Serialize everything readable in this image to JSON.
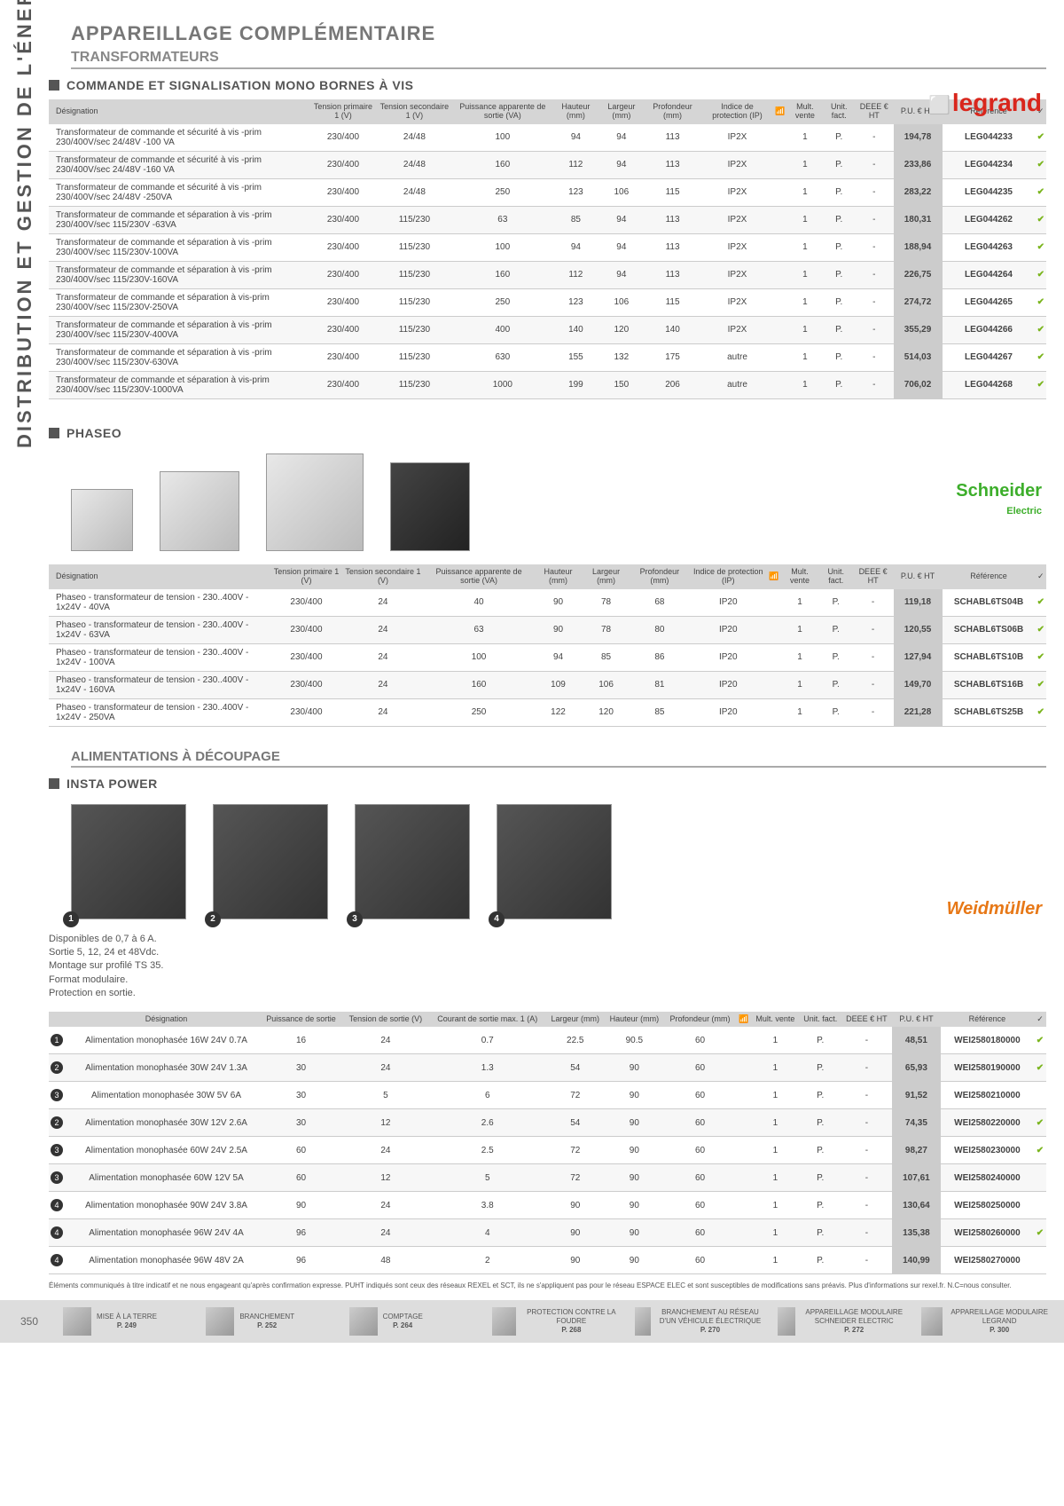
{
  "vtab": "DISTRIBUTION ET GESTION DE L'ÉNERGIE",
  "h1": "APPAREILLAGE COMPLÉMENTAIRE",
  "h2": "TRANSFORMATEURS",
  "sec1": "COMMANDE ET SIGNALISATION MONO BORNES À VIS",
  "sec2": "PHASEO",
  "h3": "ALIMENTATIONS À DÉCOUPAGE",
  "sec3": "INSTA POWER",
  "notes": "Disponibles de 0,7 à 6 A.\nSortie 5, 12, 24 et 48Vdc.\nMontage sur profilé TS 35.\nFormat modulaire.\nProtection en sortie.",
  "brand1": "legrand",
  "brand2": "Schneider",
  "brand2sub": "Electric",
  "brand3": "Weidmüller",
  "t1": {
    "head": [
      "Désignation",
      "Tension primaire 1 (V)",
      "Tension secondaire 1 (V)",
      "Puissance apparente de sortie (VA)",
      "Hauteur (mm)",
      "Largeur (mm)",
      "Profondeur (mm)",
      "Indice de protection (IP)",
      "📶",
      "Mult. vente",
      "Unit. fact.",
      "DEEE € HT",
      "P.U. € HT",
      "Référence",
      "✓"
    ],
    "rows": [
      [
        "Transformateur de commande et sécurité à vis -prim 230/400V/sec 24/48V -100 VA",
        "230/400",
        "24/48",
        "100",
        "94",
        "94",
        "113",
        "IP2X",
        "",
        "1",
        "P.",
        "-",
        "194,78",
        "LEG044233",
        "✔"
      ],
      [
        "Transformateur de commande et sécurité à vis -prim 230/400V/sec 24/48V -160 VA",
        "230/400",
        "24/48",
        "160",
        "112",
        "94",
        "113",
        "IP2X",
        "",
        "1",
        "P.",
        "-",
        "233,86",
        "LEG044234",
        "✔"
      ],
      [
        "Transformateur de commande et sécurité à vis -prim 230/400V/sec 24/48V -250VA",
        "230/400",
        "24/48",
        "250",
        "123",
        "106",
        "115",
        "IP2X",
        "",
        "1",
        "P.",
        "-",
        "283,22",
        "LEG044235",
        "✔"
      ],
      [
        "Transformateur de commande et séparation à vis -prim 230/400V/sec 115/230V -63VA",
        "230/400",
        "115/230",
        "63",
        "85",
        "94",
        "113",
        "IP2X",
        "",
        "1",
        "P.",
        "-",
        "180,31",
        "LEG044262",
        "✔"
      ],
      [
        "Transformateur de commande et séparation à vis -prim 230/400V/sec 115/230V-100VA",
        "230/400",
        "115/230",
        "100",
        "94",
        "94",
        "113",
        "IP2X",
        "",
        "1",
        "P.",
        "-",
        "188,94",
        "LEG044263",
        "✔"
      ],
      [
        "Transformateur de commande et séparation à vis -prim 230/400V/sec 115/230V-160VA",
        "230/400",
        "115/230",
        "160",
        "112",
        "94",
        "113",
        "IP2X",
        "",
        "1",
        "P.",
        "-",
        "226,75",
        "LEG044264",
        "✔"
      ],
      [
        "Transformateur de commande et séparation à vis-prim 230/400V/sec 115/230V-250VA",
        "230/400",
        "115/230",
        "250",
        "123",
        "106",
        "115",
        "IP2X",
        "",
        "1",
        "P.",
        "-",
        "274,72",
        "LEG044265",
        "✔"
      ],
      [
        "Transformateur de commande et séparation à vis -prim 230/400V/sec 115/230V-400VA",
        "230/400",
        "115/230",
        "400",
        "140",
        "120",
        "140",
        "IP2X",
        "",
        "1",
        "P.",
        "-",
        "355,29",
        "LEG044266",
        "✔"
      ],
      [
        "Transformateur de commande et séparation à vis -prim 230/400V/sec 115/230V-630VA",
        "230/400",
        "115/230",
        "630",
        "155",
        "132",
        "175",
        "autre",
        "",
        "1",
        "P.",
        "-",
        "514,03",
        "LEG044267",
        "✔"
      ],
      [
        "Transformateur de commande et séparation à vis-prim 230/400V/sec 115/230V-1000VA",
        "230/400",
        "115/230",
        "1000",
        "199",
        "150",
        "206",
        "autre",
        "",
        "1",
        "P.",
        "-",
        "706,02",
        "LEG044268",
        "✔"
      ]
    ]
  },
  "t2": {
    "head": [
      "Désignation",
      "Tension primaire 1 (V)",
      "Tension secondaire 1 (V)",
      "Puissance apparente de sortie (VA)",
      "Hauteur (mm)",
      "Largeur (mm)",
      "Profondeur (mm)",
      "Indice de protection (IP)",
      "📶",
      "Mult. vente",
      "Unit. fact.",
      "DEEE € HT",
      "P.U. € HT",
      "Référence",
      "✓"
    ],
    "rows": [
      [
        "Phaseo - transformateur de tension - 230..400V - 1x24V - 40VA",
        "230/400",
        "24",
        "40",
        "90",
        "78",
        "68",
        "IP20",
        "",
        "1",
        "P.",
        "-",
        "119,18",
        "SCHABL6TS04B",
        "✔"
      ],
      [
        "Phaseo - transformateur de tension - 230..400V - 1x24V - 63VA",
        "230/400",
        "24",
        "63",
        "90",
        "78",
        "80",
        "IP20",
        "",
        "1",
        "P.",
        "-",
        "120,55",
        "SCHABL6TS06B",
        "✔"
      ],
      [
        "Phaseo - transformateur de tension - 230..400V - 1x24V - 100VA",
        "230/400",
        "24",
        "100",
        "94",
        "85",
        "86",
        "IP20",
        "",
        "1",
        "P.",
        "-",
        "127,94",
        "SCHABL6TS10B",
        "✔"
      ],
      [
        "Phaseo - transformateur de tension - 230..400V - 1x24V - 160VA",
        "230/400",
        "24",
        "160",
        "109",
        "106",
        "81",
        "IP20",
        "",
        "1",
        "P.",
        "-",
        "149,70",
        "SCHABL6TS16B",
        "✔"
      ],
      [
        "Phaseo - transformateur de tension - 230..400V - 1x24V - 250VA",
        "230/400",
        "24",
        "250",
        "122",
        "120",
        "85",
        "IP20",
        "",
        "1",
        "P.",
        "-",
        "221,28",
        "SCHABL6TS25B",
        "✔"
      ]
    ]
  },
  "t3": {
    "head": [
      "",
      "Désignation",
      "Puissance de sortie",
      "Tension de sortie (V)",
      "Courant de sortie max. 1 (A)",
      "Largeur (mm)",
      "Hauteur (mm)",
      "Profondeur (mm)",
      "📶",
      "Mult. vente",
      "Unit. fact.",
      "DEEE € HT",
      "P.U. € HT",
      "Référence",
      "✓"
    ],
    "rows": [
      [
        "1",
        "Alimentation monophasée  16W 24V 0.7A",
        "16",
        "24",
        "0.7",
        "22.5",
        "90.5",
        "60",
        "",
        "1",
        "P.",
        "-",
        "48,51",
        "WEI2580180000",
        "✔"
      ],
      [
        "2",
        "Alimentation monophasée  30W 24V 1.3A",
        "30",
        "24",
        "1.3",
        "54",
        "90",
        "60",
        "",
        "1",
        "P.",
        "-",
        "65,93",
        "WEI2580190000",
        "✔"
      ],
      [
        "3",
        "Alimentation monophasée  30W 5V 6A",
        "30",
        "5",
        "6",
        "72",
        "90",
        "60",
        "",
        "1",
        "P.",
        "-",
        "91,52",
        "WEI2580210000",
        ""
      ],
      [
        "2",
        "Alimentation monophasée  30W 12V 2.6A",
        "30",
        "12",
        "2.6",
        "54",
        "90",
        "60",
        "",
        "1",
        "P.",
        "-",
        "74,35",
        "WEI2580220000",
        "✔"
      ],
      [
        "3",
        "Alimentation monophasée  60W 24V 2.5A",
        "60",
        "24",
        "2.5",
        "72",
        "90",
        "60",
        "",
        "1",
        "P.",
        "-",
        "98,27",
        "WEI2580230000",
        "✔"
      ],
      [
        "3",
        "Alimentation monophasée  60W 12V 5A",
        "60",
        "12",
        "5",
        "72",
        "90",
        "60",
        "",
        "1",
        "P.",
        "-",
        "107,61",
        "WEI2580240000",
        ""
      ],
      [
        "4",
        "Alimentation monophasée  90W 24V 3.8A",
        "90",
        "24",
        "3.8",
        "90",
        "90",
        "60",
        "",
        "1",
        "P.",
        "-",
        "130,64",
        "WEI2580250000",
        ""
      ],
      [
        "4",
        "Alimentation monophasée  96W 24V 4A",
        "96",
        "24",
        "4",
        "90",
        "90",
        "60",
        "",
        "1",
        "P.",
        "-",
        "135,38",
        "WEI2580260000",
        "✔"
      ],
      [
        "4",
        "Alimentation monophasée  96W 48V 2A",
        "96",
        "48",
        "2",
        "90",
        "90",
        "60",
        "",
        "1",
        "P.",
        "-",
        "140,99",
        "WEI2580270000",
        ""
      ]
    ]
  },
  "footnote": "Éléments communiqués à titre indicatif et ne nous engageant qu'après confirmation expresse. PUHT indiqués sont ceux des réseaux REXEL et SCT, ils ne s'appliquent pas pour le réseau ESPACE ELEC et sont susceptibles de modifications sans préavis. Plus d'informations sur rexel.fr. N.C=nous consulter.",
  "footer": [
    {
      "t": "MISE À LA TERRE",
      "p": "P. 249"
    },
    {
      "t": "BRANCHEMENT",
      "p": "P. 252"
    },
    {
      "t": "COMPTAGE",
      "p": "P. 264"
    },
    {
      "t": "PROTECTION CONTRE LA FOUDRE",
      "p": "P. 268"
    },
    {
      "t": "BRANCHEMENT AU RÉSEAU D'UN VÉHICULE ÉLECTRIQUE",
      "p": "P. 270"
    },
    {
      "t": "APPAREILLAGE MODULAIRE SCHNEIDER ELECTRIC",
      "p": "P. 272"
    },
    {
      "t": "APPAREILLAGE MODULAIRE LEGRAND",
      "p": "P. 300"
    }
  ],
  "pagenum": "350"
}
